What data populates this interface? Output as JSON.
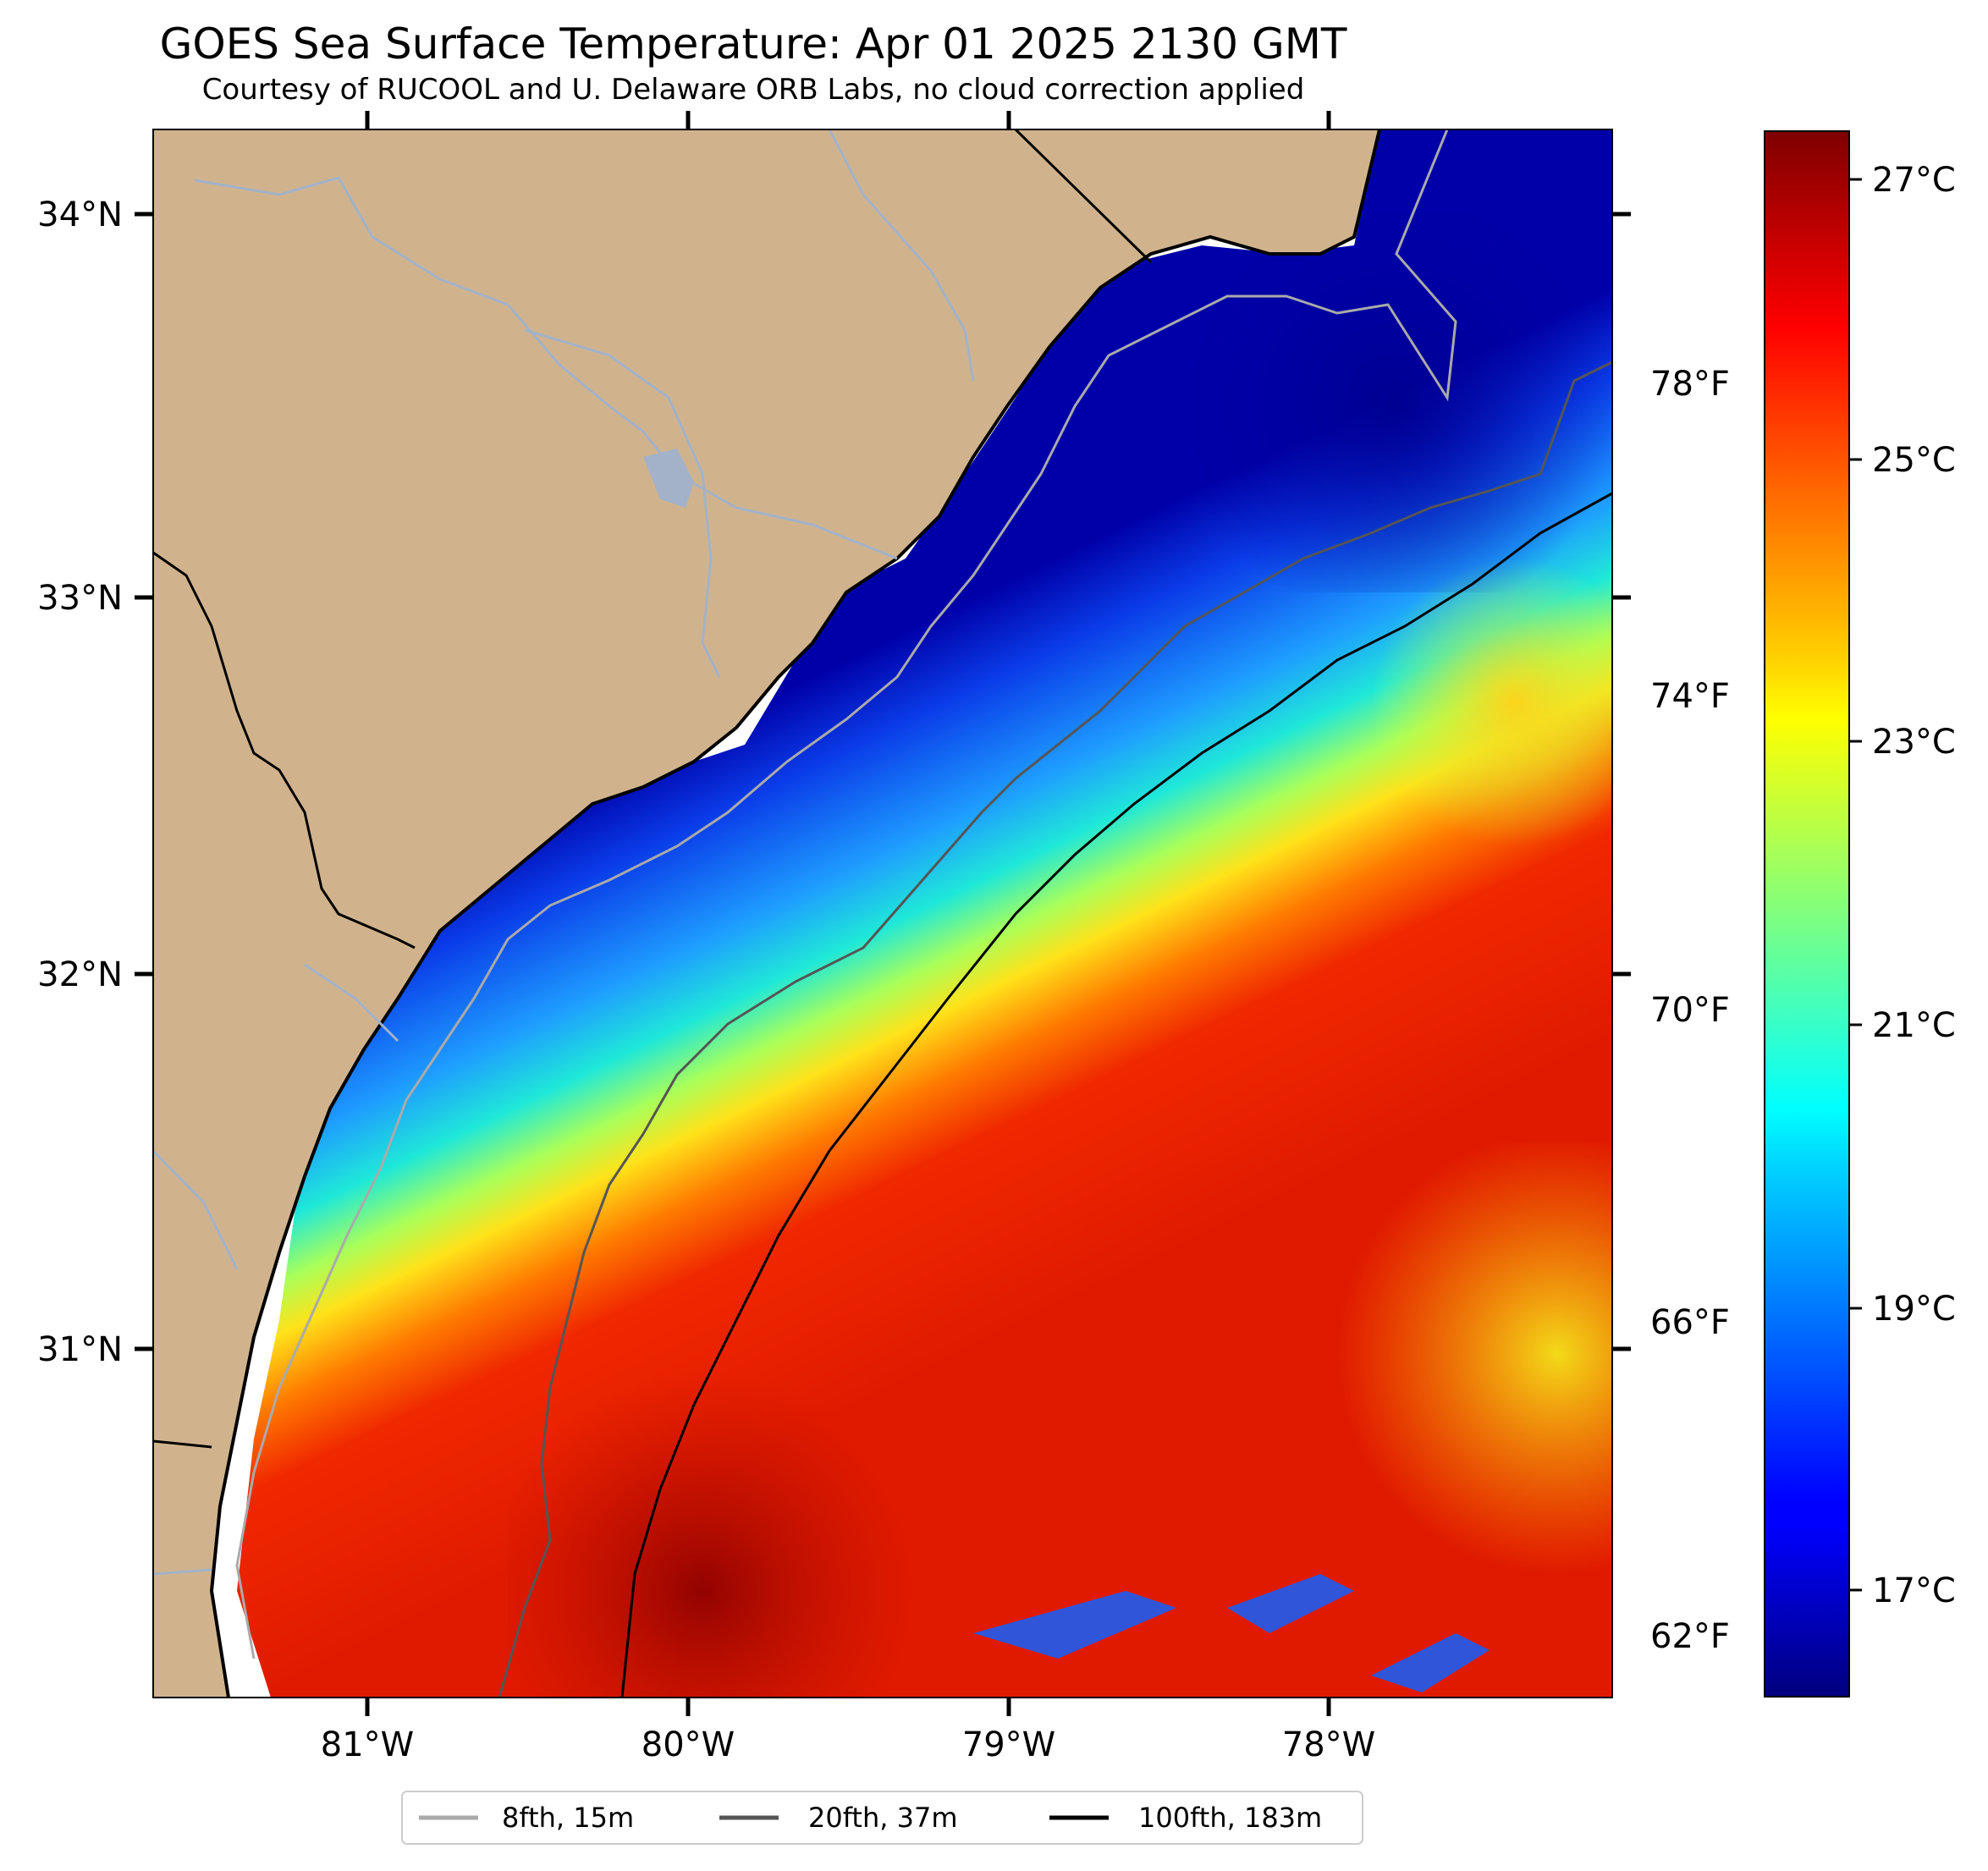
{
  "title": "GOES Sea Surface Temperature: Apr 01 2025 2130 GMT",
  "subtitle": "Courtesy of RUCOOL and U. Delaware ORB Labs, no cloud correction applied",
  "map": {
    "lon_range": [
      -81.67,
      -77.12
    ],
    "lat_range": [
      30.1,
      34.22
    ],
    "lat_ticks": [
      "34°N",
      "33°N",
      "32°N",
      "31°N"
    ],
    "lon_ticks": [
      "81°W",
      "80°W",
      "79°W",
      "78°W"
    ],
    "land_color": "#d0b38d",
    "coast_color": "#000000",
    "river_color": "#a3b2c9"
  },
  "colorbar": {
    "colormap": "jet",
    "celsius_range": [
      16.1,
      27.3
    ],
    "celsius_labels": [
      "27°C",
      "25°C",
      "23°C",
      "21°C",
      "19°C",
      "17°C"
    ],
    "fahrenheit_labels": [
      "78°F",
      "74°F",
      "70°F",
      "66°F",
      "62°F"
    ]
  },
  "legend": {
    "items": [
      {
        "label": "8fth, 15m",
        "color": "#aaaaaa"
      },
      {
        "label": "20fth, 37m",
        "color": "#555555"
      },
      {
        "label": "100fth, 183m",
        "color": "#000000"
      }
    ]
  }
}
